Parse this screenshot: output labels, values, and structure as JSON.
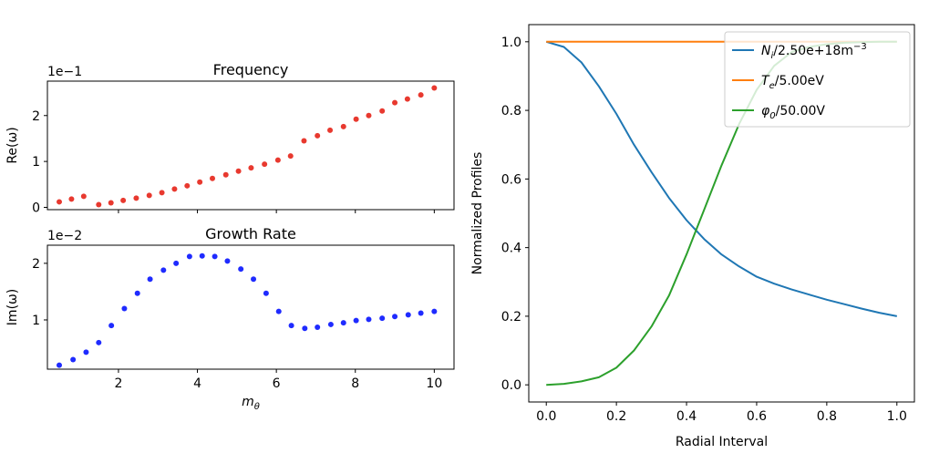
{
  "chart_data": [
    {
      "id": "frequency",
      "type": "scatter",
      "title": "Frequency",
      "xlabel": "",
      "ylabel": "Re(ω)",
      "offset_label": "1e−1",
      "xlim": [
        0.2,
        10.5
      ],
      "ylim": [
        -0.05,
        2.75
      ],
      "xticks": [
        2,
        4,
        6,
        8,
        10
      ],
      "xtick_labels": [
        "",
        "",
        "",
        "",
        ""
      ],
      "yticks": [
        0,
        1,
        2
      ],
      "ytick_labels": [
        "0",
        "1",
        "2"
      ],
      "grid": false,
      "series": [
        {
          "color": "#e8392f",
          "x": [
            0.5,
            0.81,
            1.12,
            1.5,
            1.81,
            2.12,
            2.45,
            2.78,
            3.1,
            3.42,
            3.74,
            4.06,
            4.38,
            4.72,
            5.04,
            5.36,
            5.7,
            6.04,
            6.36,
            6.7,
            7.04,
            7.36,
            7.7,
            8.02,
            8.34,
            8.68,
            9.0,
            9.32,
            9.66,
            10.0
          ],
          "y": [
            0.12,
            0.18,
            0.24,
            0.06,
            0.1,
            0.15,
            0.2,
            0.26,
            0.32,
            0.4,
            0.47,
            0.55,
            0.63,
            0.71,
            0.79,
            0.86,
            0.94,
            1.03,
            1.12,
            1.45,
            1.56,
            1.68,
            1.76,
            1.92,
            2.0,
            2.1,
            2.28,
            2.36,
            2.45,
            2.6
          ]
        }
      ]
    },
    {
      "id": "growth",
      "type": "scatter",
      "title": "Growth Rate",
      "xlabel": "m_θ",
      "ylabel": "Im(ω)",
      "offset_label": "1e−2",
      "xlim": [
        0.2,
        10.5
      ],
      "ylim": [
        0.13,
        2.32
      ],
      "xticks": [
        2,
        4,
        6,
        8,
        10
      ],
      "xtick_labels": [
        "2",
        "4",
        "6",
        "8",
        "10"
      ],
      "yticks": [
        1,
        2
      ],
      "ytick_labels": [
        "1",
        "2"
      ],
      "grid": false,
      "series": [
        {
          "color": "#1f2bff",
          "x": [
            0.5,
            0.85,
            1.18,
            1.5,
            1.82,
            2.15,
            2.48,
            2.8,
            3.14,
            3.46,
            3.8,
            4.12,
            4.44,
            4.76,
            5.1,
            5.42,
            5.74,
            6.06,
            6.38,
            6.72,
            7.04,
            7.38,
            7.7,
            8.02,
            8.34,
            8.68,
            9.0,
            9.34,
            9.66,
            10.0
          ],
          "y": [
            0.2,
            0.3,
            0.43,
            0.6,
            0.9,
            1.2,
            1.47,
            1.72,
            1.88,
            2.0,
            2.12,
            2.13,
            2.12,
            2.04,
            1.9,
            1.72,
            1.47,
            1.15,
            0.9,
            0.85,
            0.87,
            0.92,
            0.95,
            0.99,
            1.01,
            1.03,
            1.06,
            1.09,
            1.12,
            1.15
          ]
        }
      ]
    },
    {
      "id": "profiles",
      "type": "line",
      "title": "",
      "xlabel": "Radial Interval",
      "ylabel": "Normalized Profiles",
      "xlim": [
        -0.05,
        1.05
      ],
      "ylim": [
        -0.05,
        1.05
      ],
      "xticks": [
        0.0,
        0.2,
        0.4,
        0.6,
        0.8,
        1.0
      ],
      "xtick_labels": [
        "0.0",
        "0.2",
        "0.4",
        "0.6",
        "0.8",
        "1.0"
      ],
      "yticks": [
        0.0,
        0.2,
        0.4,
        0.6,
        0.8,
        1.0
      ],
      "ytick_labels": [
        "0.0",
        "0.2",
        "0.4",
        "0.6",
        "0.8",
        "1.0"
      ],
      "grid": false,
      "legend_position": "top-right",
      "series": [
        {
          "name": "N_i/2.50e+18m^−3",
          "color": "#1f77b4",
          "x": [
            0.0,
            0.05,
            0.1,
            0.15,
            0.2,
            0.25,
            0.3,
            0.35,
            0.4,
            0.45,
            0.5,
            0.55,
            0.6,
            0.65,
            0.7,
            0.75,
            0.8,
            0.85,
            0.9,
            0.95,
            1.0
          ],
          "y": [
            1.0,
            0.985,
            0.94,
            0.87,
            0.79,
            0.7,
            0.62,
            0.545,
            0.48,
            0.425,
            0.38,
            0.345,
            0.315,
            0.295,
            0.278,
            0.263,
            0.248,
            0.235,
            0.222,
            0.21,
            0.2
          ]
        },
        {
          "name": "T_e/5.00eV",
          "color": "#ff7f0e",
          "x": [
            0.0,
            1.0
          ],
          "y": [
            1.0,
            1.0
          ]
        },
        {
          "name": "φ_0/50.00V",
          "color": "#2ca02c",
          "x": [
            0.0,
            0.05,
            0.1,
            0.15,
            0.2,
            0.25,
            0.3,
            0.35,
            0.4,
            0.45,
            0.5,
            0.55,
            0.6,
            0.65,
            0.7,
            0.75,
            0.8,
            0.85,
            0.9,
            0.95,
            1.0
          ],
          "y": [
            0.0,
            0.003,
            0.01,
            0.022,
            0.05,
            0.1,
            0.17,
            0.26,
            0.38,
            0.51,
            0.64,
            0.76,
            0.86,
            0.93,
            0.97,
            0.985,
            0.993,
            0.997,
            0.999,
            1.0,
            1.0
          ]
        }
      ]
    }
  ]
}
